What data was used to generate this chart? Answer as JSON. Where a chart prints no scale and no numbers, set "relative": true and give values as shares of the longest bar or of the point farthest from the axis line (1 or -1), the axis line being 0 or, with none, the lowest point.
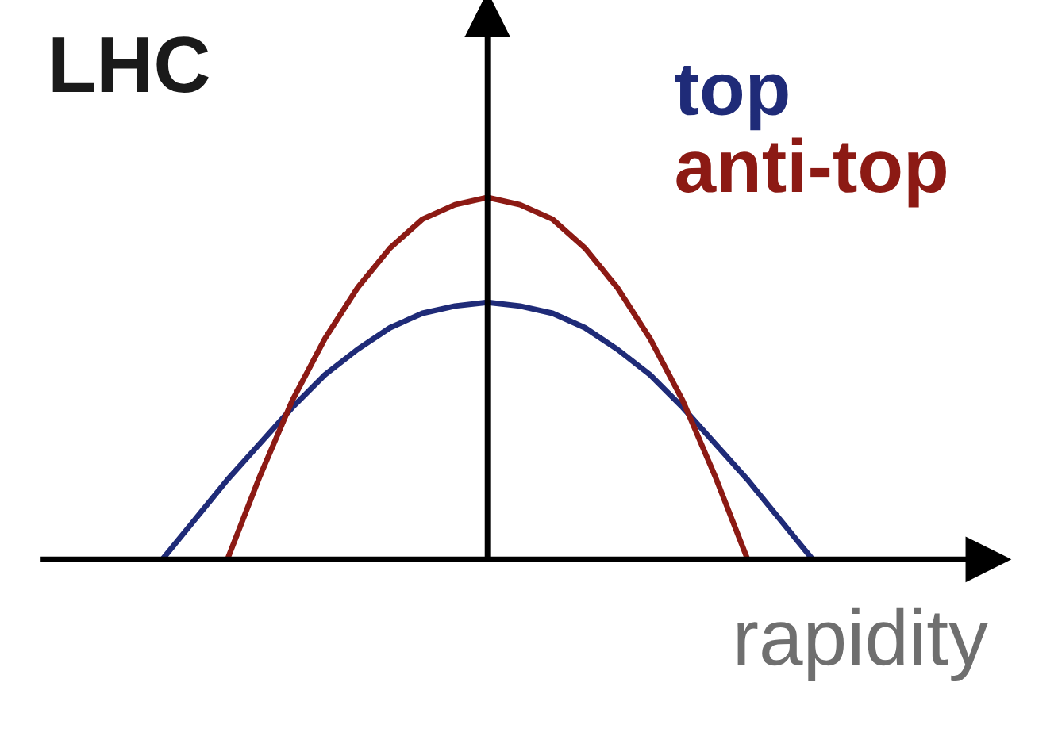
{
  "chart_data": {
    "type": "line",
    "relative": true,
    "xlabel": "rapidity",
    "annotations": [
      "LHC"
    ],
    "categories": [
      null,
      null,
      null,
      null,
      null,
      null,
      null,
      null,
      null,
      null,
      null,
      null,
      null,
      null,
      null,
      null,
      null,
      null,
      null,
      null,
      null
    ],
    "series": [
      {
        "name": "top",
        "color": "#1f2b78",
        "values": [
          0,
          0.11,
          0.22,
          0.32,
          0.42,
          0.51,
          0.58,
          0.64,
          0.68,
          0.7,
          0.71,
          0.7,
          0.68,
          0.64,
          0.58,
          0.51,
          0.42,
          0.32,
          0.22,
          0.11,
          0
        ]
      },
      {
        "name": "anti-top",
        "color": "#8c1a14",
        "values": [
          null,
          null,
          0,
          0.23,
          0.44,
          0.61,
          0.75,
          0.86,
          0.94,
          0.98,
          1,
          0.98,
          0.94,
          0.86,
          0.75,
          0.61,
          0.44,
          0.23,
          0,
          null,
          null
        ]
      }
    ],
    "legend": "top right",
    "grid": false,
    "marker": "none",
    "line_style": "solid"
  }
}
